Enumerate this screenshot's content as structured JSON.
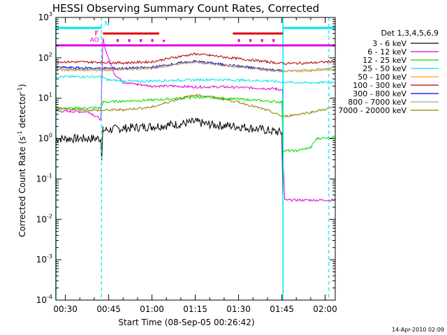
{
  "chart_data": {
    "type": "line",
    "title": "HESSI Observing Summary Count Rates, Corrected",
    "xlabel": "Start Time (08-Sep-05 00:26:42)",
    "ylabel_main": "Corrected Count Rate (s",
    "ylabel_sup1": "-1",
    "ylabel_mid": " detector",
    "ylabel_sup2": "-1",
    "ylabel_end": ")",
    "footer": "14-Apr-2010 02:09",
    "legend_title": "Det 1,3,4,5,6,9",
    "y_scale": "log",
    "ylim": [
      0.0001,
      1000
    ],
    "xlim_minutes": [
      26.7,
      123.5
    ],
    "x_ticks": [
      {
        "t": 30,
        "label": "00:30"
      },
      {
        "t": 45,
        "label": "00:45"
      },
      {
        "t": 60,
        "label": "01:00"
      },
      {
        "t": 75,
        "label": "01:15"
      },
      {
        "t": 90,
        "label": "01:30"
      },
      {
        "t": 105,
        "label": "01:45"
      },
      {
        "t": 120,
        "label": "02:00"
      }
    ],
    "y_ticks": [
      {
        "exp": 3,
        "label": "10",
        "sup": "3"
      },
      {
        "exp": 2,
        "label": "10",
        "sup": "2"
      },
      {
        "exp": 1,
        "label": "10",
        "sup": "1"
      },
      {
        "exp": 0,
        "label": "10",
        "sup": "0"
      },
      {
        "exp": -1,
        "label": "10",
        "sup": "-1"
      },
      {
        "exp": -2,
        "label": "10",
        "sup": "-2"
      },
      {
        "exp": -3,
        "label": "10",
        "sup": "-3"
      },
      {
        "exp": -4,
        "label": "10",
        "sup": "-4"
      }
    ],
    "markers": {
      "N_label": "N",
      "F_label": "F",
      "AO_label": "AO",
      "night_bars": [
        [
          26.7,
          42.5
        ],
        [
          105.4,
          123.5
        ]
      ],
      "N_dashed": [
        42.5,
        121.3
      ],
      "N_solid": [
        26.7,
        105.4
      ],
      "flare_bars": [
        [
          43.0,
          62.5
        ],
        [
          88.0,
          105.3
        ]
      ],
      "flare_dots": [
        48,
        52,
        56,
        60,
        90,
        94,
        98,
        102
      ],
      "attenuator": [
        [
          26.7,
          42.6
        ],
        [
          42.6,
          105.4
        ],
        [
          105.4,
          123.5
        ]
      ],
      "attenuator_dots": [
        48,
        52,
        56,
        60,
        64,
        90,
        94,
        98,
        102
      ],
      "colors": {
        "night": "#00e5ee",
        "flare": "#e00000",
        "attenuator": "#e000e0"
      }
    },
    "series": [
      {
        "name": "3 - 6 keV",
        "color": "#000000",
        "points": [
          [
            26.7,
            1.0
          ],
          [
            42.3,
            1.0
          ],
          [
            42.6,
            0.3
          ],
          [
            43.0,
            1.6
          ],
          [
            50,
            1.8
          ],
          [
            60,
            2.0
          ],
          [
            70,
            2.3
          ],
          [
            75,
            2.6
          ],
          [
            80,
            2.2
          ],
          [
            90,
            2.0
          ],
          [
            100,
            1.6
          ],
          [
            105.0,
            1.4
          ],
          [
            105.3,
            0.05
          ]
        ]
      },
      {
        "name": "6 - 12 keV",
        "color": "#e000e0",
        "points": [
          [
            26.7,
            4.8
          ],
          [
            38,
            4.6
          ],
          [
            42.3,
            3.0
          ],
          [
            43.0,
            300
          ],
          [
            44,
            150
          ],
          [
            45.5,
            80
          ],
          [
            47,
            40
          ],
          [
            50,
            25
          ],
          [
            55,
            22
          ],
          [
            60,
            20
          ],
          [
            67,
            20
          ],
          [
            75,
            19
          ],
          [
            85,
            19
          ],
          [
            95,
            18
          ],
          [
            103,
            17
          ],
          [
            105.2,
            16
          ],
          [
            105.5,
            0.2
          ],
          [
            106,
            0.03
          ],
          [
            123.5,
            0.03
          ]
        ]
      },
      {
        "name": "12 - 25 keV",
        "color": "#00e000",
        "points": [
          [
            26.7,
            5.5
          ],
          [
            42.3,
            5.8
          ],
          [
            43,
            8
          ],
          [
            50,
            8.5
          ],
          [
            60,
            9
          ],
          [
            70,
            10
          ],
          [
            75,
            10.5
          ],
          [
            85,
            10
          ],
          [
            95,
            9
          ],
          [
            105.0,
            8
          ],
          [
            105.4,
            0.5
          ],
          [
            110,
            0.5
          ],
          [
            115,
            0.6
          ],
          [
            117,
            1.0
          ],
          [
            123.5,
            1.1
          ]
        ]
      },
      {
        "name": "25 - 50 keV",
        "color": "#00e5ee",
        "points": [
          [
            26.7,
            34
          ],
          [
            42.3,
            34
          ],
          [
            45,
            28
          ],
          [
            55,
            26
          ],
          [
            60,
            27
          ],
          [
            70,
            28
          ],
          [
            80,
            29
          ],
          [
            90,
            28
          ],
          [
            100,
            27
          ],
          [
            105.3,
            25
          ],
          [
            105.6,
            25
          ],
          [
            115,
            24
          ],
          [
            123.5,
            25
          ]
        ]
      },
      {
        "name": "50 - 100 keV",
        "color": "#ffa500",
        "points": [
          [
            26.7,
            50
          ],
          [
            42,
            50
          ],
          [
            50,
            52
          ],
          [
            60,
            55
          ],
          [
            70,
            75
          ],
          [
            75,
            80
          ],
          [
            80,
            72
          ],
          [
            90,
            60
          ],
          [
            100,
            50
          ],
          [
            105.3,
            46
          ],
          [
            105.6,
            46
          ],
          [
            115,
            48
          ],
          [
            123.5,
            52
          ]
        ]
      },
      {
        "name": "100 - 300 keV",
        "color": "#b00000",
        "points": [
          [
            26.7,
            80
          ],
          [
            42,
            78
          ],
          [
            50,
            75
          ],
          [
            60,
            80
          ],
          [
            70,
            110
          ],
          [
            75,
            125
          ],
          [
            80,
            115
          ],
          [
            90,
            95
          ],
          [
            100,
            80
          ],
          [
            105.3,
            72
          ],
          [
            105.6,
            72
          ],
          [
            115,
            75
          ],
          [
            123.5,
            82
          ]
        ]
      },
      {
        "name": "300 - 800 keV",
        "color": "#0000e0",
        "points": [
          [
            26.7,
            58
          ],
          [
            42,
            55
          ],
          [
            50,
            55
          ],
          [
            60,
            58
          ],
          [
            70,
            75
          ],
          [
            75,
            82
          ],
          [
            80,
            75
          ],
          [
            90,
            62
          ],
          [
            100,
            52
          ],
          [
            105.3,
            48
          ]
        ]
      },
      {
        "name": "800 - 7000 keV",
        "color": "#a0a0a0",
        "points": [
          [
            26.7,
            52
          ],
          [
            42,
            50
          ],
          [
            50,
            52
          ],
          [
            60,
            56
          ],
          [
            70,
            72
          ],
          [
            75,
            78
          ],
          [
            80,
            72
          ],
          [
            90,
            60
          ],
          [
            100,
            50
          ],
          [
            105.3,
            47
          ],
          [
            105.6,
            47
          ],
          [
            115,
            50
          ],
          [
            123.5,
            55
          ]
        ]
      },
      {
        "name": "7000 - 20000 keV",
        "color": "#908000",
        "points": [
          [
            26.7,
            5.5
          ],
          [
            42,
            5.0
          ],
          [
            50,
            5.2
          ],
          [
            60,
            6
          ],
          [
            70,
            10
          ],
          [
            75,
            12
          ],
          [
            80,
            11
          ],
          [
            90,
            8
          ],
          [
            100,
            5
          ],
          [
            105.3,
            3.5
          ],
          [
            105.6,
            3.5
          ],
          [
            115,
            4.5
          ],
          [
            123.5,
            6
          ]
        ]
      }
    ]
  }
}
